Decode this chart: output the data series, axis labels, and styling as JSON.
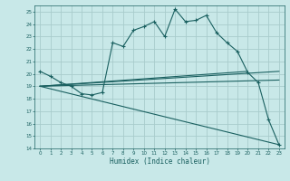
{
  "xlabel": "Humidex (Indice chaleur)",
  "bg_color": "#c8e8e8",
  "grid_color": "#a8cccc",
  "line_color": "#1a6060",
  "xlim": [
    -0.5,
    23.5
  ],
  "ylim": [
    14,
    25.5
  ],
  "yticks": [
    14,
    15,
    16,
    17,
    18,
    19,
    20,
    21,
    22,
    23,
    24,
    25
  ],
  "xticks": [
    0,
    1,
    2,
    3,
    4,
    5,
    6,
    7,
    8,
    9,
    10,
    11,
    12,
    13,
    14,
    15,
    16,
    17,
    18,
    19,
    20,
    21,
    22,
    23
  ],
  "main_line_x": [
    0,
    1,
    2,
    3,
    4,
    5,
    6,
    7,
    8,
    9,
    10,
    11,
    12,
    13,
    14,
    15,
    16,
    17,
    18,
    19,
    20,
    21,
    22,
    23
  ],
  "main_line_y": [
    20.2,
    19.8,
    19.3,
    19.0,
    18.4,
    18.3,
    18.5,
    22.5,
    22.2,
    23.5,
    23.8,
    24.2,
    23.0,
    25.2,
    24.2,
    24.3,
    24.7,
    23.3,
    22.5,
    21.8,
    20.1,
    19.3,
    16.3,
    14.3
  ],
  "line2_x": [
    0,
    23
  ],
  "line2_y": [
    19.0,
    19.5
  ],
  "line3_x": [
    0,
    23
  ],
  "line3_y": [
    19.0,
    14.3
  ],
  "line4_x": [
    0,
    23
  ],
  "line4_y": [
    19.0,
    20.2
  ],
  "line5_x": [
    0,
    20
  ],
  "line5_y": [
    19.0,
    20.2
  ]
}
